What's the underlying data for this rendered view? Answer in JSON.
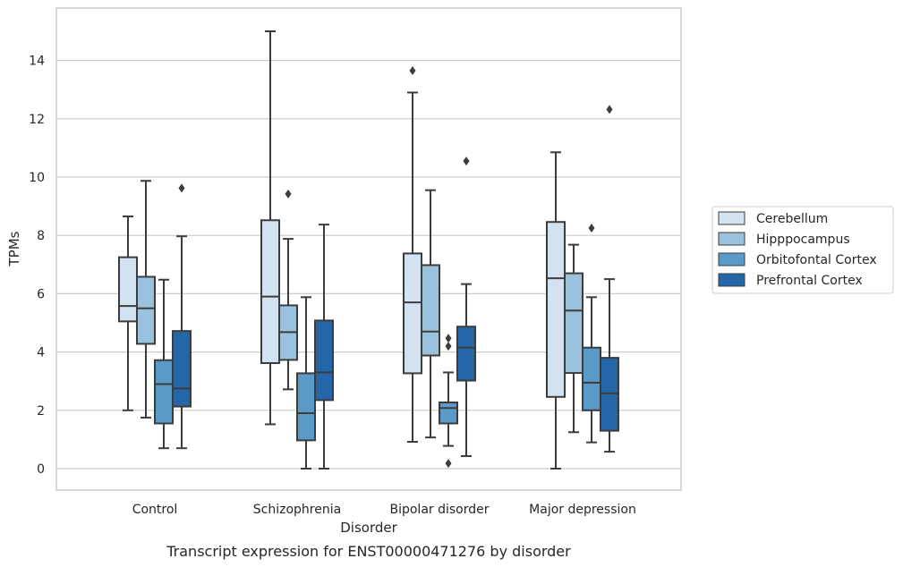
{
  "chart_data": {
    "type": "box",
    "caption": "Transcript expression for ENST00000471276 by disorder",
    "xlabel": "Disorder",
    "ylabel": "TPMs",
    "ylim": [
      -0.7,
      15.6
    ],
    "yticks": [
      0,
      2,
      4,
      6,
      8,
      10,
      12,
      14
    ],
    "grid": "horizontal",
    "legend_position": "right",
    "categories": [
      "Control",
      "Schizophrenia",
      "Bipolar disorder",
      "Major depression"
    ],
    "series": [
      {
        "name": "Cerebellum",
        "color": "#d2e2f1",
        "boxes": [
          {
            "min": 2.0,
            "q1": 5.05,
            "median": 5.58,
            "q3": 7.25,
            "max": 8.65,
            "outliers": []
          },
          {
            "min": 1.52,
            "q1": 3.62,
            "median": 5.9,
            "q3": 8.52,
            "max": 15.0,
            "outliers": []
          },
          {
            "min": 0.92,
            "q1": 3.27,
            "median": 5.7,
            "q3": 7.38,
            "max": 12.9,
            "outliers": [
              13.65
            ]
          },
          {
            "min": 0.0,
            "q1": 2.46,
            "median": 6.53,
            "q3": 8.46,
            "max": 10.85,
            "outliers": []
          }
        ]
      },
      {
        "name": "Hipppocampus",
        "color": "#9ac2dd",
        "boxes": [
          {
            "min": 1.75,
            "q1": 4.28,
            "median": 5.5,
            "q3": 6.58,
            "max": 9.87,
            "outliers": []
          },
          {
            "min": 2.72,
            "q1": 3.73,
            "median": 4.68,
            "q3": 5.6,
            "max": 7.88,
            "outliers": [
              9.42
            ]
          },
          {
            "min": 1.07,
            "q1": 3.88,
            "median": 4.7,
            "q3": 6.98,
            "max": 9.55,
            "outliers": []
          },
          {
            "min": 1.25,
            "q1": 3.28,
            "median": 5.42,
            "q3": 6.7,
            "max": 7.68,
            "outliers": []
          }
        ]
      },
      {
        "name": "Orbitofontal Cortex",
        "color": "#5a9ac8",
        "boxes": [
          {
            "min": 0.7,
            "q1": 1.55,
            "median": 2.9,
            "q3": 3.72,
            "max": 6.48,
            "outliers": []
          },
          {
            "min": 0.0,
            "q1": 0.97,
            "median": 1.9,
            "q3": 3.27,
            "max": 5.88,
            "outliers": []
          },
          {
            "min": 0.78,
            "q1": 1.55,
            "median": 2.08,
            "q3": 2.27,
            "max": 3.3,
            "outliers": [
              4.47,
              4.2,
              0.18
            ]
          },
          {
            "min": 0.9,
            "q1": 2.0,
            "median": 2.95,
            "q3": 4.15,
            "max": 5.88,
            "outliers": [
              8.25
            ]
          }
        ]
      },
      {
        "name": "Prefrontal Cortex",
        "color": "#2566a8",
        "boxes": [
          {
            "min": 0.7,
            "q1": 2.13,
            "median": 2.75,
            "q3": 4.72,
            "max": 7.97,
            "outliers": [
              9.62
            ]
          },
          {
            "min": 0.0,
            "q1": 2.35,
            "median": 3.3,
            "q3": 5.08,
            "max": 8.37,
            "outliers": []
          },
          {
            "min": 0.43,
            "q1": 3.02,
            "median": 4.15,
            "q3": 4.87,
            "max": 6.33,
            "outliers": [
              10.55
            ]
          },
          {
            "min": 0.58,
            "q1": 1.3,
            "median": 2.58,
            "q3": 3.8,
            "max": 6.5,
            "outliers": [
              12.32
            ]
          }
        ]
      }
    ]
  }
}
